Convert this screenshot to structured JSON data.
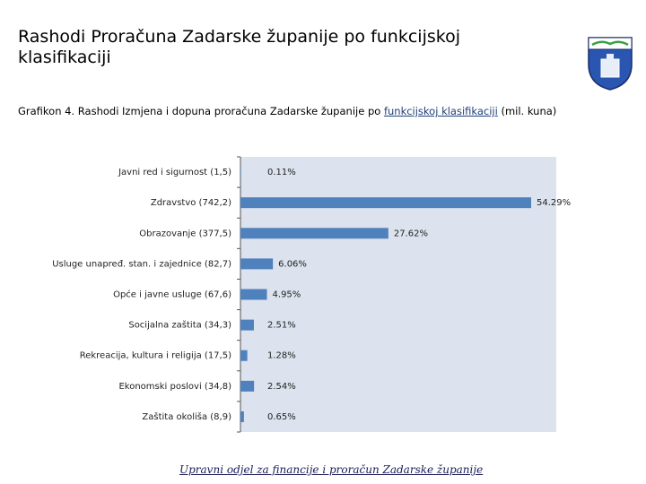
{
  "header": {
    "title": "Rashodi Proračuna Zadarske županije po funkcijskoj klasifikaciji"
  },
  "chart_data": {
    "type": "bar",
    "orientation": "horizontal",
    "subtitle": "Grafikon 4. Rashodi Izmjena i dopuna proračuna Zadarske županije po",
    "subtitle_link": "funkcijskoj klasifikaciji",
    "subtitle_unit": "(mil. kuna)",
    "categories": [
      "Javni red i sigurnost (1,5)",
      "Zdravstvo (742,2)",
      "Obrazovanje (377,5)",
      "Usluge unapređ. stan. i zajednice (82,7)",
      "Opće i javne usluge (67,6)",
      "Socijalna zaštita (34,3)",
      "Rekreacija, kultura i religija (17,5)",
      "Ekonomski poslovi (34,8)",
      "Zaštita okoliša (8,9)"
    ],
    "values": [
      0.11,
      54.29,
      27.62,
      6.06,
      4.95,
      2.51,
      1.28,
      2.54,
      0.65
    ],
    "value_labels": [
      "0.11%",
      "54.29%",
      "27.62%",
      "6.06%",
      "4.95%",
      "2.51%",
      "1.28%",
      "2.54%",
      "0.65%"
    ],
    "color": "#4f81bd"
  },
  "footer": "Upravni odjel za financije i proračun Zadarske županije"
}
